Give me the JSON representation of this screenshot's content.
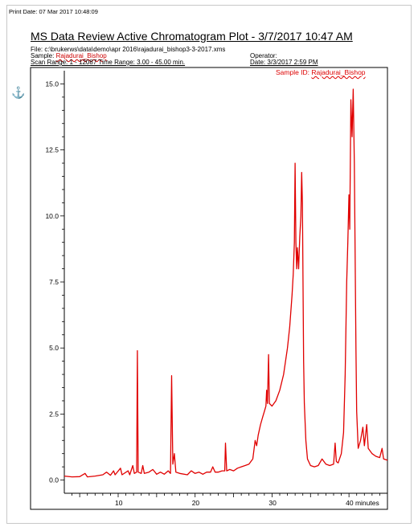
{
  "header": {
    "print_date": "Print Date: 07 Mar 2017 10:48:09",
    "title": "MS Data Review Active Chromatogram Plot - 3/7/2017 10:47 AM",
    "file": "File: c:\\brukerws\\data\\demo\\apr 2016\\rajadurai_bishop3-3-2017.xms",
    "sample_label": "Sample:",
    "sample_value": "Rajadurai_Bishop",
    "operator": "Operator:",
    "scan_range": "Scan Range: 1 - 12087 Time Range: 3.00 - 45.00 min.",
    "date": "Date: 3/3/2017 2:59 PM"
  },
  "icons": {
    "anchor": "anchor-icon"
  },
  "chart_data": {
    "type": "line",
    "title": "",
    "xlabel": "minutes",
    "ylabel": "",
    "xlim": [
      3,
      45
    ],
    "ylim": [
      -0.5,
      15.5
    ],
    "x_ticks": [
      10,
      20,
      30,
      40
    ],
    "x_tick_labels": [
      "10",
      "20",
      "30",
      "40 minutes"
    ],
    "y_ticks": [
      0,
      2.5,
      5,
      7.5,
      10,
      12.5,
      15
    ],
    "y_tick_labels": [
      "0.0",
      "2.5",
      "5.0",
      "7.5",
      "10.0",
      "12.5",
      "15.0"
    ],
    "annotation": {
      "label": "Sample ID:",
      "value": "Rajadurai_Bishop"
    },
    "series_color": "#e00000",
    "series": [
      {
        "name": "",
        "points": [
          [
            3.0,
            0.15
          ],
          [
            4.0,
            0.12
          ],
          [
            5.0,
            0.13
          ],
          [
            5.7,
            0.25
          ],
          [
            6.0,
            0.12
          ],
          [
            7.0,
            0.15
          ],
          [
            8.0,
            0.2
          ],
          [
            8.5,
            0.3
          ],
          [
            9.0,
            0.18
          ],
          [
            9.4,
            0.35
          ],
          [
            9.6,
            0.2
          ],
          [
            10.3,
            0.45
          ],
          [
            10.5,
            0.2
          ],
          [
            11.3,
            0.35
          ],
          [
            11.5,
            0.2
          ],
          [
            11.9,
            0.55
          ],
          [
            12.1,
            0.25
          ],
          [
            12.4,
            0.3
          ],
          [
            12.5,
            4.9
          ],
          [
            12.6,
            0.3
          ],
          [
            13.0,
            0.25
          ],
          [
            13.2,
            0.55
          ],
          [
            13.4,
            0.25
          ],
          [
            14.0,
            0.3
          ],
          [
            14.5,
            0.4
          ],
          [
            15.0,
            0.22
          ],
          [
            15.5,
            0.3
          ],
          [
            16.0,
            0.22
          ],
          [
            16.5,
            0.35
          ],
          [
            16.8,
            0.25
          ],
          [
            16.95,
            3.95
          ],
          [
            17.1,
            0.6
          ],
          [
            17.3,
            1.0
          ],
          [
            17.5,
            0.3
          ],
          [
            18.0,
            0.25
          ],
          [
            19.0,
            0.2
          ],
          [
            19.5,
            0.35
          ],
          [
            20.0,
            0.25
          ],
          [
            20.5,
            0.3
          ],
          [
            21.0,
            0.22
          ],
          [
            21.5,
            0.3
          ],
          [
            22.0,
            0.3
          ],
          [
            22.3,
            0.5
          ],
          [
            22.6,
            0.3
          ],
          [
            23.0,
            0.3
          ],
          [
            23.5,
            0.35
          ],
          [
            23.85,
            0.35
          ],
          [
            23.95,
            1.4
          ],
          [
            24.1,
            0.35
          ],
          [
            24.5,
            0.4
          ],
          [
            25.0,
            0.35
          ],
          [
            25.5,
            0.45
          ],
          [
            26.0,
            0.5
          ],
          [
            26.5,
            0.55
          ],
          [
            27.0,
            0.6
          ],
          [
            27.5,
            0.8
          ],
          [
            27.8,
            1.5
          ],
          [
            28.0,
            1.3
          ],
          [
            28.2,
            1.7
          ],
          [
            28.5,
            2.1
          ],
          [
            28.8,
            2.4
          ],
          [
            29.0,
            2.6
          ],
          [
            29.2,
            2.8
          ],
          [
            29.3,
            3.4
          ],
          [
            29.4,
            2.9
          ],
          [
            29.55,
            4.75
          ],
          [
            29.65,
            2.9
          ],
          [
            30.0,
            2.8
          ],
          [
            30.5,
            3.0
          ],
          [
            31.0,
            3.4
          ],
          [
            31.5,
            4.0
          ],
          [
            32.0,
            5.0
          ],
          [
            32.3,
            5.8
          ],
          [
            32.6,
            7.0
          ],
          [
            32.75,
            7.8
          ],
          [
            32.9,
            9.0
          ],
          [
            33.0,
            12.0
          ],
          [
            33.1,
            9.0
          ],
          [
            33.2,
            8.0
          ],
          [
            33.3,
            8.8
          ],
          [
            33.45,
            8.0
          ],
          [
            33.6,
            9.2
          ],
          [
            33.75,
            10.0
          ],
          [
            33.85,
            11.65
          ],
          [
            33.95,
            10.5
          ],
          [
            34.1,
            4.5
          ],
          [
            34.2,
            2.9
          ],
          [
            34.4,
            1.5
          ],
          [
            34.6,
            0.8
          ],
          [
            35.0,
            0.55
          ],
          [
            35.5,
            0.5
          ],
          [
            36.0,
            0.55
          ],
          [
            36.5,
            0.8
          ],
          [
            37.0,
            0.6
          ],
          [
            37.5,
            0.55
          ],
          [
            38.0,
            0.6
          ],
          [
            38.2,
            1.4
          ],
          [
            38.35,
            0.7
          ],
          [
            38.6,
            0.65
          ],
          [
            39.0,
            1.0
          ],
          [
            39.3,
            1.8
          ],
          [
            39.5,
            4.0
          ],
          [
            39.7,
            7.5
          ],
          [
            39.85,
            9.0
          ],
          [
            40.0,
            10.8
          ],
          [
            40.1,
            9.5
          ],
          [
            40.25,
            14.4
          ],
          [
            40.4,
            13.0
          ],
          [
            40.55,
            14.8
          ],
          [
            40.7,
            12.0
          ],
          [
            40.9,
            5.0
          ],
          [
            41.0,
            2.6
          ],
          [
            41.2,
            1.2
          ],
          [
            41.5,
            1.5
          ],
          [
            41.8,
            2.0
          ],
          [
            42.0,
            1.3
          ],
          [
            42.3,
            2.1
          ],
          [
            42.5,
            1.2
          ],
          [
            43.0,
            1.0
          ],
          [
            43.5,
            0.9
          ],
          [
            44.0,
            0.85
          ],
          [
            44.3,
            1.2
          ],
          [
            44.5,
            0.8
          ],
          [
            45.0,
            0.75
          ]
        ]
      }
    ]
  }
}
